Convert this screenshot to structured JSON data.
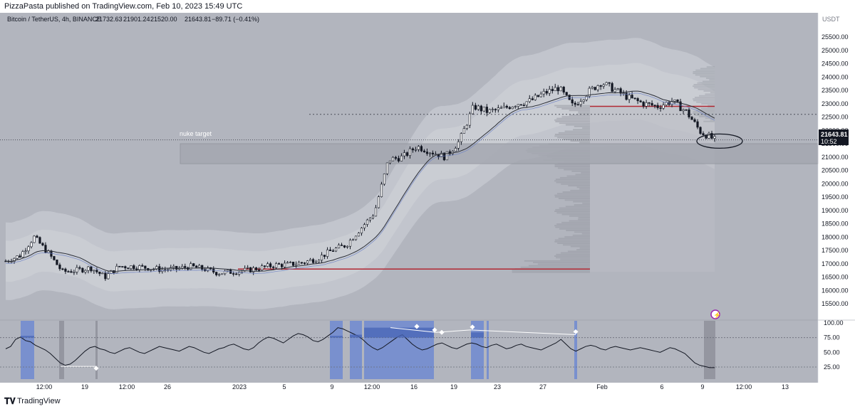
{
  "header": {
    "published": "PizzaPasta published on TradingView.com, Feb 10, 2023 15:49 UTC"
  },
  "legend": {
    "symbol": "Bitcoin / TetherUS, 4h, BINANCE",
    "open": "21732.63",
    "high": "21901.24",
    "low": "21520.00",
    "close": "21643.81",
    "change": "−89.71 (−0.41%)"
  },
  "price_scale": {
    "currency": "USDT",
    "ticks": [
      "25500.00",
      "25000.00",
      "24500.00",
      "24000.00",
      "23500.00",
      "23000.00",
      "22500.00",
      "22000.00",
      "21500.00",
      "21000.00",
      "20500.00",
      "20000.00",
      "19500.00",
      "19000.00",
      "18500.00",
      "18000.00",
      "17500.00",
      "17000.00",
      "16500.00",
      "16000.00",
      "15500.00"
    ],
    "last_price": "21643.81",
    "countdown": "10:52"
  },
  "indicator_scale": {
    "ticks": [
      "100.00",
      "75.00",
      "50.00",
      "25.00"
    ]
  },
  "time_axis": {
    "labels": [
      "12:00",
      "19",
      "12:00",
      "26",
      "2023",
      "5",
      "9",
      "12:00",
      "16",
      "19",
      "23",
      "27",
      "Feb",
      "6",
      "9",
      "12:00",
      "13",
      "12:00"
    ]
  },
  "annotations": {
    "zone_label": "nuke target"
  },
  "footer": {
    "logo": "𝐓𝐕",
    "brand": "TradingView"
  },
  "colors": {
    "plot_bg": "#b2b5be",
    "text": "#131722",
    "scale_bg": "#ffffff",
    "candle": "#131722",
    "sma": "#2a2e39",
    "red_level": "#b22833",
    "band_outer": "#c3c6ce",
    "band_inner": "#cbcdd4",
    "volume_profile": "#9598a1",
    "highlight": "#6f8ad1",
    "highlight_dark": "#4a66b8",
    "shade_gray": "#8e919b"
  },
  "chart_data": {
    "type": "candlestick",
    "symbol": "Bitcoin / TetherUS",
    "interval": "4h",
    "exchange": "BINANCE",
    "y_unit": "USDT",
    "ylim": [
      15200,
      25700
    ],
    "price_path": [
      [
        0,
        17100
      ],
      [
        1,
        17300
      ],
      [
        2,
        18000
      ],
      [
        3,
        17400
      ],
      [
        4,
        16700
      ],
      [
        5,
        16750
      ],
      [
        6,
        16850
      ],
      [
        7,
        16500
      ],
      [
        8,
        16900
      ],
      [
        9,
        16900
      ],
      [
        10,
        16850
      ],
      [
        11,
        16780
      ],
      [
        12,
        16800
      ],
      [
        13,
        16900
      ],
      [
        14,
        16800
      ],
      [
        15,
        16650
      ],
      [
        16,
        16700
      ],
      [
        17,
        16750
      ],
      [
        18,
        16850
      ],
      [
        19,
        16950
      ],
      [
        20,
        16970
      ],
      [
        21,
        17050
      ],
      [
        22,
        17200
      ],
      [
        23,
        17500
      ],
      [
        24,
        17700
      ],
      [
        25,
        18300
      ],
      [
        26,
        18900
      ],
      [
        27,
        20900
      ],
      [
        28,
        21000
      ],
      [
        29,
        21400
      ],
      [
        30,
        21200
      ],
      [
        31,
        21000
      ],
      [
        32,
        21600
      ],
      [
        33,
        22900
      ],
      [
        34,
        22700
      ],
      [
        35,
        22800
      ],
      [
        36,
        23000
      ],
      [
        37,
        23100
      ],
      [
        38,
        23400
      ],
      [
        39,
        23600
      ],
      [
        40,
        22900
      ],
      [
        41,
        23400
      ],
      [
        42,
        23800
      ],
      [
        43,
        23500
      ],
      [
        44,
        23200
      ],
      [
        45,
        23000
      ],
      [
        46,
        22900
      ],
      [
        47,
        23100
      ],
      [
        48,
        22700
      ],
      [
        49,
        21950
      ],
      [
        50,
        21643.81
      ]
    ],
    "path_time_span": [
      "2023-01-10 00:00",
      "2023-02-10 12:00"
    ],
    "levels": [
      {
        "price": 16800,
        "color": "red",
        "style": "solid"
      },
      {
        "price": 22900,
        "color": "red",
        "style": "solid"
      },
      {
        "price": 22600,
        "style": "dotted"
      },
      {
        "price": 21643.81,
        "style": "dotted"
      }
    ],
    "zone": {
      "label": "nuke target",
      "price_top": 21500,
      "price_bottom": 20750
    },
    "indicator": {
      "ylim": [
        0,
        110
      ],
      "levels": [
        75,
        25
      ],
      "values": [
        56,
        60,
        72,
        76,
        70,
        68,
        62,
        58,
        54,
        48,
        40,
        32,
        28,
        30,
        36,
        44,
        52,
        58,
        60,
        56,
        54,
        50,
        48,
        52,
        56,
        58,
        54,
        50,
        48,
        52,
        56,
        60,
        58,
        56,
        54,
        52,
        56,
        60,
        58,
        54,
        50,
        48,
        52,
        56,
        58,
        62,
        64,
        60,
        56,
        54,
        58,
        66,
        72,
        76,
        74,
        70,
        66,
        72,
        78,
        82,
        80,
        76,
        70,
        68,
        72,
        78,
        84,
        92,
        90,
        86,
        82,
        78,
        72,
        64,
        58,
        54,
        58,
        64,
        70,
        76,
        80,
        72,
        64,
        58,
        54,
        56,
        60,
        64,
        66,
        62,
        58,
        56,
        60,
        64,
        66,
        64,
        60,
        58,
        62,
        64,
        60,
        56,
        58,
        62,
        64,
        60,
        58,
        56,
        54,
        58,
        62,
        66,
        72,
        64,
        56,
        52,
        56,
        60,
        62,
        60,
        56,
        54,
        58,
        60,
        58,
        56,
        54,
        56,
        58,
        56,
        54,
        52,
        50,
        54,
        58,
        56,
        52,
        48,
        40,
        32,
        28,
        26,
        24,
        24
      ]
    }
  }
}
